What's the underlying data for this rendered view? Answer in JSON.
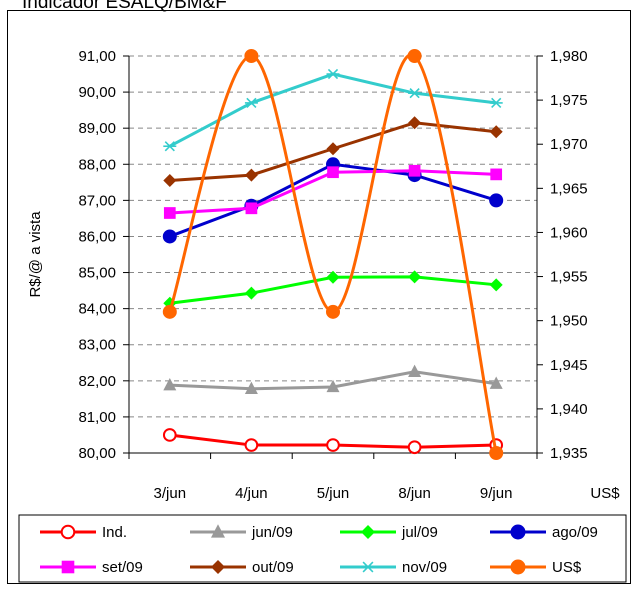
{
  "title": "Indicador ESALQ/BM&F",
  "chart_data": {
    "type": "line",
    "title": "Indicador ESALQ/BM&F",
    "categories": [
      "3/jun",
      "4/jun",
      "5/jun",
      "8/jun",
      "9/jun"
    ],
    "ylabel": "R$/@ a vista",
    "y2label": "US$",
    "ylim": [
      80,
      91
    ],
    "y2lim": [
      1.935,
      1.98
    ],
    "yticks": [
      "80,00",
      "81,00",
      "82,00",
      "83,00",
      "84,00",
      "85,00",
      "86,00",
      "87,00",
      "88,00",
      "89,00",
      "90,00",
      "91,00"
    ],
    "y2ticks": [
      "1,935",
      "1,940",
      "1,945",
      "1,950",
      "1,955",
      "1,960",
      "1,965",
      "1,970",
      "1,975",
      "1,980"
    ],
    "grid": true,
    "legend_position": "bottom",
    "series": [
      {
        "name": "Ind.",
        "axis": "left",
        "color": "#FF0000",
        "marker": "circle-open",
        "smooth": false,
        "values": [
          80.5,
          80.22,
          80.22,
          80.16,
          80.22
        ]
      },
      {
        "name": "jun/09",
        "axis": "left",
        "color": "#999999",
        "marker": "triangle",
        "smooth": false,
        "values": [
          81.88,
          81.78,
          81.83,
          82.25,
          81.92
        ]
      },
      {
        "name": "jul/09",
        "axis": "left",
        "color": "#00FF00",
        "marker": "diamond",
        "smooth": false,
        "values": [
          84.15,
          84.43,
          84.87,
          84.88,
          84.66
        ]
      },
      {
        "name": "ago/09",
        "axis": "left",
        "color": "#0000CC",
        "marker": "circle",
        "smooth": false,
        "values": [
          86.0,
          86.85,
          88.0,
          87.7,
          87.0
        ]
      },
      {
        "name": "set/09",
        "axis": "left",
        "color": "#FF00FF",
        "marker": "square",
        "smooth": false,
        "values": [
          86.65,
          86.78,
          87.78,
          87.82,
          87.72
        ]
      },
      {
        "name": "out/09",
        "axis": "left",
        "color": "#993300",
        "marker": "diamond",
        "smooth": false,
        "values": [
          87.55,
          87.7,
          88.43,
          89.15,
          88.9
        ]
      },
      {
        "name": "nov/09",
        "axis": "left",
        "color": "#33CCCC",
        "marker": "star",
        "smooth": false,
        "values": [
          88.5,
          89.7,
          90.5,
          89.97,
          89.7
        ]
      },
      {
        "name": "US$",
        "axis": "right",
        "color": "#FF6600",
        "marker": "circle",
        "smooth": true,
        "values": [
          1.951,
          1.98,
          1.951,
          1.98,
          1.935
        ]
      }
    ]
  }
}
